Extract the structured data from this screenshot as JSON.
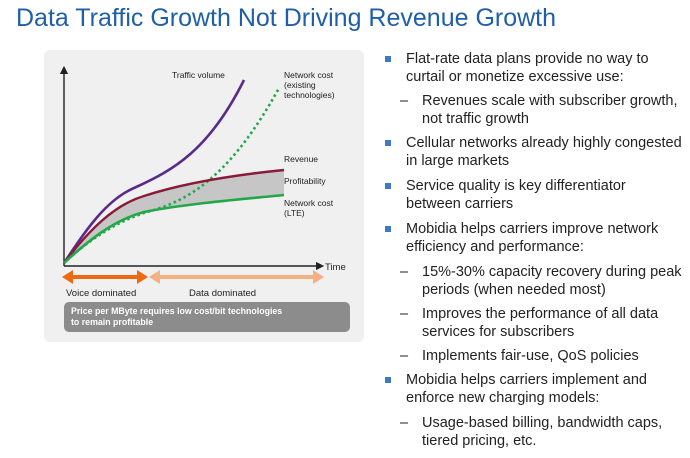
{
  "title": "Data Traffic Growth Not Driving Revenue Growth",
  "diagram": {
    "curve_labels": {
      "traffic_volume": "Traffic volume",
      "network_cost_existing": [
        "Network cost",
        "(existing",
        "technologies)"
      ],
      "revenue": "Revenue",
      "profitability": "Profitability",
      "network_cost_lte": [
        "Network cost",
        "(LTE)"
      ]
    },
    "time_axis_label": "Time",
    "phases": {
      "voice": "Voice dominated",
      "data": "Data dominated"
    },
    "note_lines": [
      "Price per MByte requires low cost/bit technologies",
      "to remain profitable"
    ],
    "colors": {
      "traffic_volume": "#5a2a8c",
      "network_cost_existing": "#22a84a",
      "revenue": "#8a1a3a",
      "network_cost_lte": "#22a84a",
      "profitability_fill": "#c6c6c6",
      "voice_arrow": "#ee6a12",
      "data_arrow": "#f5b083",
      "note_box": "#8c8c8c"
    }
  },
  "bullets": [
    {
      "level": 1,
      "text": "Flat-rate data plans provide no way to curtail or monetize excessive use:"
    },
    {
      "level": 2,
      "dash": "–",
      "text": "Revenues scale with subscriber growth, not traffic growth"
    },
    {
      "level": 1,
      "text": "Cellular networks already highly congested in large markets"
    },
    {
      "level": 1,
      "text": "Service quality is key differentiator between carriers"
    },
    {
      "level": 1,
      "text": "Mobidia helps carriers improve network efficiency and performance:"
    },
    {
      "level": 2,
      "dash": "–",
      "text": "15%-30% capacity recovery during peak periods (when needed most)"
    },
    {
      "level": 2,
      "dash": "–",
      "text": "Improves the performance of all data services for subscribers"
    },
    {
      "level": 2,
      "dash": "–",
      "text": "Implements fair-use, QoS policies"
    },
    {
      "level": 1,
      "text": "Mobidia helps carriers implement and enforce new charging models:"
    },
    {
      "level": 2,
      "dash": "–",
      "text": "Usage-based billing, bandwidth caps, tiered pricing, etc."
    }
  ]
}
